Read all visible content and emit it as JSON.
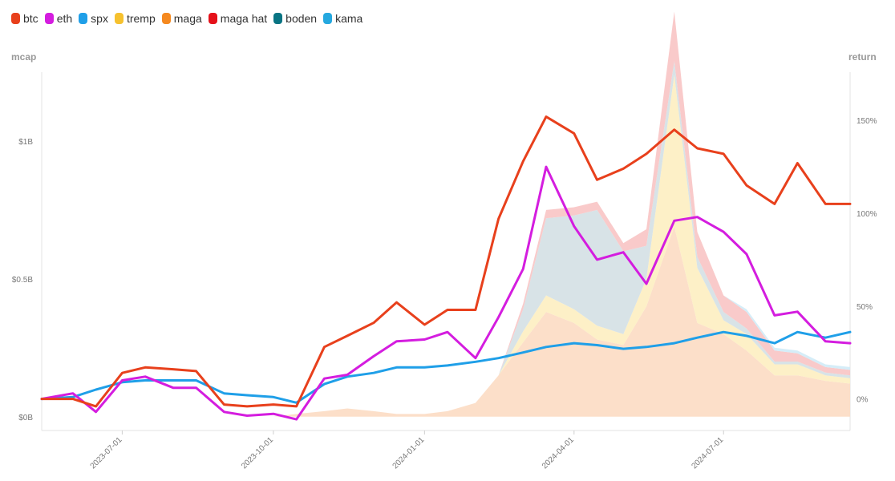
{
  "chart_data": {
    "type": "area",
    "left_axis": {
      "title": "mcap",
      "ticks": [
        "$0B",
        "$0.5B",
        "$1B"
      ],
      "tick_values": [
        0,
        0.5,
        1.0
      ],
      "range": [
        -0.05,
        1.25
      ]
    },
    "right_axis": {
      "title": "return",
      "ticks": [
        "0%",
        "50%",
        "100%",
        "150%"
      ],
      "tick_values": [
        0,
        50,
        100,
        150
      ],
      "range": [
        -17,
        176
      ]
    },
    "x_ticks": [
      "2023-07-01",
      "2023-10-01",
      "2024-01-01",
      "2024-04-01",
      "2024-07-01"
    ],
    "x_tick_dates": [
      "2023-07-01",
      "2023-10-01",
      "2024-01-01",
      "2024-04-01",
      "2024-07-01"
    ],
    "x_range": [
      "2023-05-13",
      "2024-09-16"
    ],
    "grid": false,
    "legend_position": "top-left",
    "dates": [
      "2023-05-13",
      "2023-06-01",
      "2023-06-15",
      "2023-07-01",
      "2023-07-15",
      "2023-08-01",
      "2023-08-15",
      "2023-09-01",
      "2023-09-15",
      "2023-10-01",
      "2023-10-15",
      "2023-11-01",
      "2023-11-15",
      "2023-12-01",
      "2023-12-15",
      "2024-01-01",
      "2024-01-15",
      "2024-02-01",
      "2024-02-15",
      "2024-03-01",
      "2024-03-15",
      "2024-04-01",
      "2024-04-15",
      "2024-05-01",
      "2024-05-15",
      "2024-06-01",
      "2024-06-15",
      "2024-07-01",
      "2024-07-15",
      "2024-08-01",
      "2024-08-15",
      "2024-09-01",
      "2024-09-16"
    ],
    "series": [
      {
        "name": "btc",
        "color": "#e8401c",
        "kind": "line",
        "axis": "right",
        "values": [
          0,
          0,
          -4,
          14,
          17,
          16,
          15,
          -3,
          -4,
          -3,
          -4,
          28,
          34,
          41,
          52,
          40,
          48,
          48,
          97,
          128,
          152,
          143,
          118,
          124,
          132,
          145,
          135,
          132,
          115,
          105,
          127,
          105,
          105
        ]
      },
      {
        "name": "eth",
        "color": "#d41ddf",
        "kind": "line",
        "axis": "right",
        "values": [
          0,
          3,
          -7,
          10,
          12,
          6,
          6,
          -7,
          -9,
          -8,
          -11,
          11,
          13,
          23,
          31,
          32,
          36,
          22,
          44,
          70,
          125,
          93,
          75,
          79,
          62,
          96,
          98,
          90,
          78,
          45,
          47,
          31,
          30
        ]
      },
      {
        "name": "spx",
        "color": "#1f9fe8",
        "kind": "line",
        "axis": "right",
        "values": [
          0,
          1,
          5,
          9,
          10,
          10,
          10,
          3,
          2,
          1,
          -2,
          8,
          12,
          14,
          17,
          17,
          18,
          20,
          22,
          25,
          28,
          30,
          29,
          27,
          28,
          30,
          33,
          36,
          34,
          30,
          36,
          33,
          36
        ]
      },
      {
        "name": "tremp",
        "color": "#f6c12e",
        "kind": "area",
        "axis": "left",
        "values": [
          0,
          0,
          0,
          0,
          0,
          0,
          0,
          0,
          0,
          0,
          0,
          0,
          0,
          0,
          0,
          0,
          0,
          0,
          0,
          0.04,
          0.06,
          0.05,
          0.05,
          0.04,
          0.1,
          0.55,
          0.2,
          0.05,
          0.06,
          0.04,
          0.04,
          0.02,
          0.02
        ]
      },
      {
        "name": "maga",
        "color": "#f5891f",
        "kind": "area",
        "axis": "left",
        "values": [
          0,
          0,
          0,
          0,
          0,
          0,
          0,
          0,
          0,
          0,
          0.01,
          0.02,
          0.03,
          0.02,
          0.01,
          0.01,
          0.02,
          0.05,
          0.15,
          0.27,
          0.38,
          0.34,
          0.28,
          0.26,
          0.4,
          0.69,
          0.34,
          0.3,
          0.24,
          0.15,
          0.15,
          0.13,
          0.12
        ]
      },
      {
        "name": "maga hat",
        "color": "#e5111a",
        "kind": "area",
        "axis": "left",
        "values": [
          0,
          0,
          0,
          0,
          0,
          0,
          0,
          0,
          0,
          0,
          0,
          0,
          0,
          0,
          0,
          0,
          0,
          0,
          0,
          0.02,
          0.03,
          0.03,
          0.03,
          0.03,
          0.06,
          0.18,
          0.09,
          0.06,
          0.06,
          0.04,
          0.03,
          0.02,
          0.02
        ]
      },
      {
        "name": "boden",
        "color": "#087483",
        "kind": "area",
        "axis": "left",
        "values": [
          0,
          0,
          0,
          0,
          0,
          0,
          0,
          0,
          0,
          0,
          0,
          0,
          0,
          0,
          0,
          0,
          0,
          0,
          0,
          0.08,
          0.28,
          0.34,
          0.42,
          0.3,
          0.12,
          0.05,
          0.04,
          0.03,
          0.02,
          0.01,
          0.01,
          0.01,
          0.01
        ]
      },
      {
        "name": "kama",
        "color": "#25a8df",
        "kind": "area",
        "axis": "left",
        "values": [
          0,
          0,
          0,
          0,
          0,
          0,
          0,
          0,
          0,
          0,
          0,
          0,
          0,
          0,
          0,
          0,
          0,
          0,
          0,
          0,
          0,
          0,
          0,
          0,
          0,
          0,
          0,
          0,
          0.01,
          0.01,
          0.01,
          0.01,
          0.01
        ]
      }
    ]
  }
}
